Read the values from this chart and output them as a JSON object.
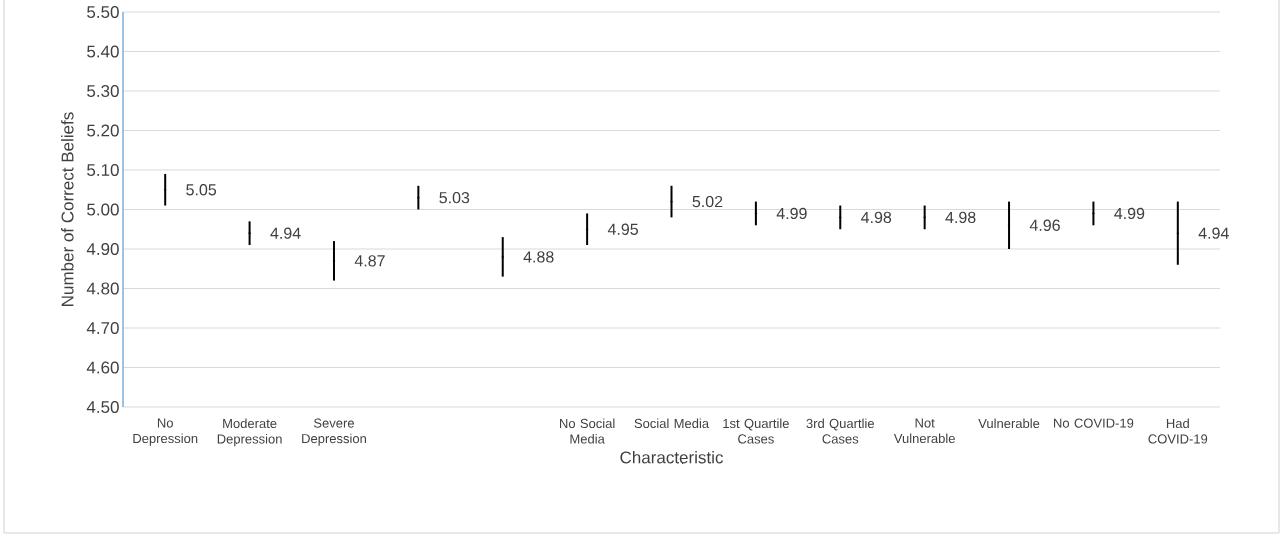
{
  "chart_data": {
    "type": "scatter",
    "xlabel": "Characteristic",
    "ylabel": "Number of Correct Beliefs",
    "categories": [
      "No Depression",
      "Moderate Depression",
      "Severe Depression",
      null,
      null,
      "No Social Media",
      "Social Media",
      "1st Quartile Cases",
      "3rd Quartlie Cases",
      "Not Vulnerable",
      "Vulnerable",
      "No COVID-19",
      "Had COVID-19"
    ],
    "values": [
      5.05,
      4.94,
      4.87,
      5.03,
      4.88,
      4.95,
      5.02,
      4.99,
      4.98,
      4.98,
      4.96,
      4.99,
      4.94
    ],
    "errors": [
      0.04,
      0.03,
      0.05,
      0.03,
      0.05,
      0.04,
      0.04,
      0.03,
      0.03,
      0.03,
      0.06,
      0.03,
      0.08
    ],
    "color": "#000000",
    "data_labels": true,
    "ylim": [
      4.5,
      5.5
    ],
    "yticks": [
      {
        "value": 4.5,
        "label": "4.50"
      },
      {
        "value": 4.6,
        "label": "4.60"
      },
      {
        "value": 4.7,
        "label": "4.70"
      },
      {
        "value": 4.8,
        "label": "4.80"
      },
      {
        "value": 4.9,
        "label": "4.90"
      },
      {
        "value": 5.0,
        "label": "5.00"
      },
      {
        "value": 5.1,
        "label": "5.10"
      },
      {
        "value": 5.2,
        "label": "5.20"
      },
      {
        "value": 5.3,
        "label": "5.30"
      },
      {
        "value": 5.4,
        "label": "5.40"
      },
      {
        "value": 5.5,
        "label": "5.50"
      }
    ],
    "grid": "y"
  }
}
